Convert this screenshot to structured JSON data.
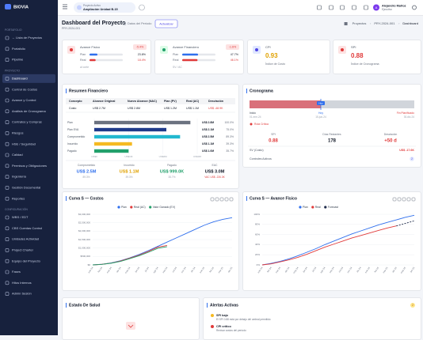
{
  "sidebar": {
    "logo": "BIOVIA",
    "sections": [
      {
        "title": "PORTAFOLIO",
        "items": [
          "← Lista de Proyectos",
          "Portafolio",
          "Pipeline"
        ]
      },
      {
        "title": "PROYECTO",
        "items": [
          "Dashboard",
          "Control de Costos",
          "Avance y Control",
          "Análisis de Cronograma",
          "Contratos y Compras",
          "Riesgos",
          "HSE / Seguridad",
          "Calidad",
          "Permisos y Obligaciones",
          "Ingeniería",
          "Gestión Documental",
          "Reportes"
        ]
      },
      {
        "title": "CONFIGURACIÓN",
        "items": [
          "WBS / EDT",
          "CBS Cuentas Control",
          "Unidades Actividad",
          "Project Charter",
          "Equipo del Proyecto",
          "Fases",
          "Hitos Internos",
          "Admin Sesión"
        ]
      }
    ]
  },
  "topbar": {
    "project_caption": "Proyecto Activo",
    "project_name": "Ampliación Unidad B-15",
    "user_initial": "A",
    "user_name": "Alejandro Muñoz",
    "user_role": "Ejecutivo"
  },
  "header": {
    "title": "Dashboard del Proyecto",
    "code": "PRY-2024-001",
    "period": "Datos del Período",
    "button": "Actualizar",
    "breadcrumb": [
      "Proyectos",
      "PRY-2024-001",
      "Dashboard"
    ]
  },
  "kpis": [
    {
      "title": "Avance Físico",
      "badge": "-5.4%",
      "rows": [
        {
          "name": "Plan",
          "value": 23.8,
          "label": "23.8%"
        },
        {
          "name": "Real",
          "value": 18.4,
          "label": "18.4%"
        }
      ],
      "note": "al corte"
    },
    {
      "title": "Avance Financiero",
      "badge": "-1.6%",
      "rows": [
        {
          "name": "Plan",
          "value": 47.7,
          "label": "47.7%"
        },
        {
          "name": "Real",
          "value": 46.1,
          "label": "46.1%"
        }
      ],
      "note": "SV / AC"
    },
    {
      "title": "CPI",
      "value": "0.93",
      "note": "Índice de Costo"
    },
    {
      "title": "SPI",
      "value": "0.88",
      "note": "Índice de Cronograma"
    }
  ],
  "financial": {
    "title": "Resumen Financiero",
    "table": {
      "columns": [
        "Concepto",
        "Alcance Original",
        "Nuevo Alcance (NAC)",
        "Plan (PV)",
        "Real (AC)",
        "Desviación"
      ],
      "rows": [
        [
          "Costo",
          "US$ 2.7M",
          "US$ 2.8M",
          "US$ 1.2M",
          "US$ 1.1M",
          "US$ -48.9K"
        ]
      ]
    },
    "chart": {
      "type": "bar",
      "categories": [
        "Plan",
        "Plan EVA",
        "Comprometido",
        "Incurrido",
        "Pagado"
      ],
      "values": [
        2.8,
        2.1,
        2.5,
        1.1,
        1.0
      ],
      "value_labels": [
        "US$ 2.8M",
        "US$ 2.1M",
        "US$ 2.5M",
        "US$ 1.1M",
        "US$ 1.0M"
      ],
      "share_labels": [
        "100.0%",
        "75.0%",
        "89.3%",
        "39.3%",
        "35.7%"
      ],
      "colors": [
        "#6b7280",
        "#1e3a8a",
        "#22b8cf",
        "#f5b921",
        "#22a06b"
      ],
      "xlim": [
        0,
        3
      ],
      "xticks": [
        {
          "value": 0,
          "label": "US$0"
        },
        {
          "value": 1,
          "label": "US$1M"
        },
        {
          "value": 2,
          "label": "US$2M"
        },
        {
          "value": 3,
          "label": "US$3M"
        }
      ]
    },
    "summary": [
      {
        "label": "Comprometido",
        "value": "US$ 2.5M",
        "note": "89.3%",
        "color": "#2f6fed"
      },
      {
        "label": "Incurrido",
        "value": "US$ 1.1M",
        "note": "39.3%",
        "color": "#e0a100"
      },
      {
        "label": "Pagado",
        "value": "US$ 999.0K",
        "note": "35.7%",
        "color": "#22a06b"
      },
      {
        "label": "EAC",
        "value": "US$ 3.0M",
        "note": "VAC US$ -226.3K",
        "color": "#111827"
      }
    ]
  },
  "schedule": {
    "title": "Cronograma",
    "today": "Hoy",
    "markers": [
      {
        "label": "Inicio",
        "date": "01-ene-24"
      },
      {
        "label": "Hoy",
        "date": "15-jun-24"
      },
      {
        "label": "Fin Planificado",
        "date": "30-dic-24"
      }
    ],
    "critical": "Ruta Crítica",
    "metrics": [
      {
        "label": "SPI",
        "value": "0.88"
      },
      {
        "label": "Días Restantes",
        "value": "178"
      },
      {
        "label": "Desviación",
        "value": "+50 d"
      }
    ],
    "sv_label": "SV (Costo)",
    "sv_value": "US$ -17.6K",
    "controls": "Controles Activos",
    "controls_count": "2"
  },
  "cost_curve": {
    "type": "line",
    "title": "Curva S — Costos",
    "categories": [
      "ene-24",
      "feb-24",
      "mar-24",
      "abr-24",
      "may-24",
      "jun-24",
      "jul-24",
      "ago-24",
      "sep-24",
      "oct-24",
      "nov-24",
      "dic-24",
      "ene-25",
      "feb-25",
      "mar-25",
      "abr-25"
    ],
    "series": [
      {
        "name": "Plan",
        "color": "#2f6fed",
        "values": [
          0,
          40000,
          120000,
          250000,
          420000,
          620000,
          850000,
          1100000,
          1350000,
          1600000,
          1850000,
          2100000,
          2350000,
          2550000,
          2700000,
          2800000
        ]
      },
      {
        "name": "Real (AC)",
        "color": "#e03a3a",
        "values": [
          0,
          35000,
          110000,
          230000,
          400000,
          580000,
          800000,
          1050000,
          1150000,
          null,
          null,
          null,
          null,
          null,
          null,
          null
        ]
      },
      {
        "name": "Valor Ganado (EV)",
        "color": "#22a06b",
        "values": [
          0,
          30000,
          100000,
          210000,
          370000,
          540000,
          750000,
          980000,
          1080000,
          null,
          null,
          null,
          null,
          null,
          null,
          null
        ]
      }
    ],
    "ylim": [
      0,
      3000000
    ],
    "yticks": [
      {
        "value": 0,
        "label": "$0"
      },
      {
        "value": 500000,
        "label": "$500,000"
      },
      {
        "value": 1000000,
        "label": "$1,000,000"
      },
      {
        "value": 1500000,
        "label": "$1,500,000"
      },
      {
        "value": 2000000,
        "label": "$2,000,000"
      },
      {
        "value": 2500000,
        "label": "$2,500,000"
      },
      {
        "value": 3000000,
        "label": "$3,000,000"
      }
    ],
    "grid": true
  },
  "progress_curve": {
    "type": "line",
    "title": "Curva S — Avance Físico",
    "categories": [
      "ene-24",
      "feb-24",
      "mar-24",
      "abr-24",
      "may-24",
      "jun-24",
      "jul-24",
      "ago-24",
      "sep-24",
      "oct-24",
      "nov-24",
      "dic-24",
      "ene-25",
      "feb-25",
      "mar-25",
      "abr-25",
      "may-25",
      "jun-25"
    ],
    "series": [
      {
        "name": "Plan",
        "color": "#2f6fed",
        "values": [
          0,
          3,
          7,
          12,
          18,
          25,
          32,
          40,
          47,
          54,
          61,
          67,
          73,
          79,
          84,
          89,
          94,
          98
        ]
      },
      {
        "name": "Real",
        "color": "#e03a3a",
        "values": [
          0,
          2,
          6,
          10,
          15,
          21,
          28,
          35,
          41,
          47,
          53,
          58,
          63,
          68,
          73,
          77,
          null,
          null
        ]
      },
      {
        "name": "Forecast",
        "color": "#1e2a4a",
        "values": [
          null,
          null,
          null,
          null,
          null,
          null,
          null,
          null,
          null,
          null,
          null,
          null,
          null,
          null,
          null,
          77,
          82,
          87
        ]
      }
    ],
    "ylim": [
      0,
      100
    ],
    "yticks": [
      {
        "value": 0,
        "label": "0%"
      },
      {
        "value": 20,
        "label": "20%"
      },
      {
        "value": 40,
        "label": "40%"
      },
      {
        "value": 60,
        "label": "60%"
      },
      {
        "value": 80,
        "label": "80%"
      },
      {
        "value": 100,
        "label": "100%"
      }
    ],
    "grid": true
  },
  "health": {
    "title": "Estado De Salud"
  },
  "alerts": {
    "title": "Alertas Activas",
    "count": "2",
    "items": [
      {
        "title": "SPI bajo",
        "text": "El SPI 0.88 está por debajo del umbral permitido"
      },
      {
        "title": "CPI crítico",
        "text": "Revisar costos del período"
      }
    ]
  }
}
